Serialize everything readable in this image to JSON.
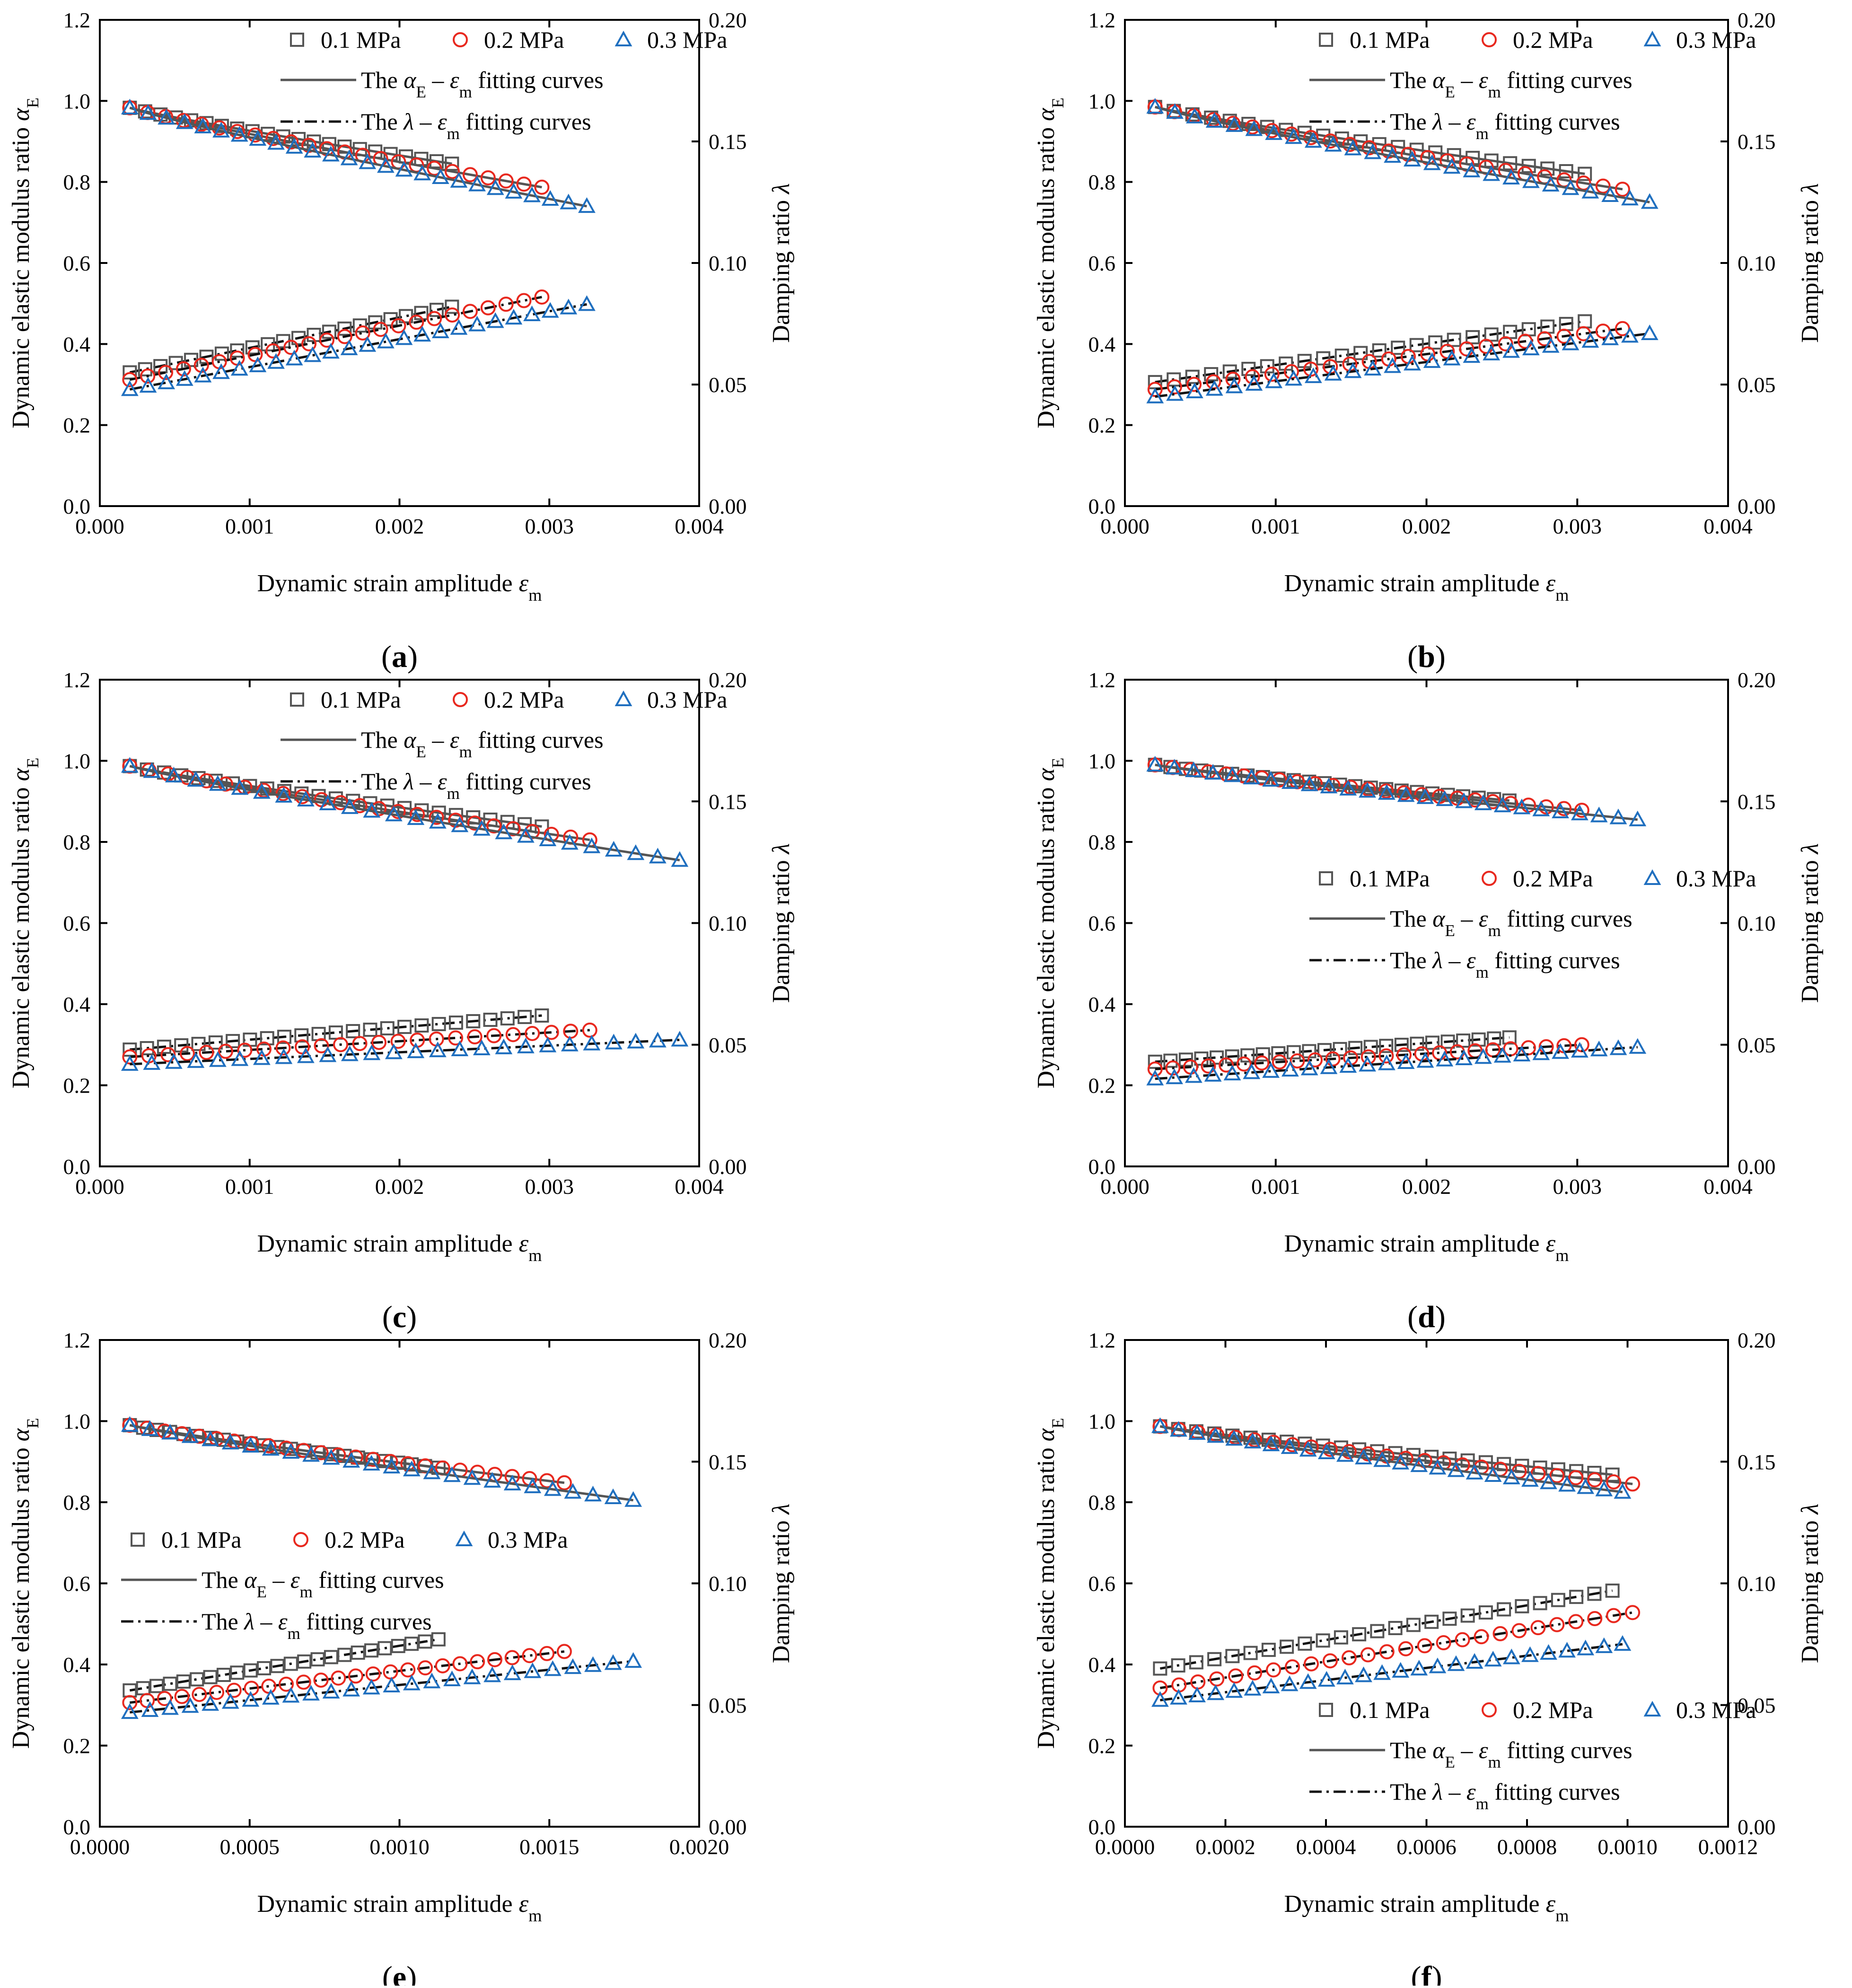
{
  "figure": {
    "legend": {
      "pressure_1": "0.1 MPa",
      "pressure_2": "0.2 MPa",
      "pressure_3": "0.3 MPa",
      "fit_E": "The αE – εm  fitting curves",
      "fit_L": "The λ – εm fitting curves"
    },
    "axis_labels": {
      "x": "Dynamic strain amplitude εm",
      "y_left": "Dynamic elastic modulus ratio αE",
      "y_right": "Damping ratio λ"
    },
    "colors": {
      "p1": "#555555",
      "p2": "#e8281e",
      "p3": "#1f6fbf",
      "fit_solid": "#555555",
      "fit_dash": "#111111"
    },
    "marker_icons": {
      "p1": "square-marker-icon",
      "p2": "circle-marker-icon",
      "p3": "triangle-marker-icon"
    }
  },
  "chart_data": [
    {
      "panel": "(a)",
      "type": "scatter",
      "xlabel": "Dynamic strain amplitude εm",
      "ylabel": "Dynamic elastic modulus ratio αE",
      "y2label": "Damping ratio λ",
      "xlim": [
        0,
        0.004
      ],
      "xticks": [
        "0.000",
        "0.001",
        "0.002",
        "0.003",
        "0.004"
      ],
      "ylim": [
        0,
        1.2
      ],
      "yticks": [
        "0.0",
        "0.2",
        "0.4",
        "0.6",
        "0.8",
        "1.0",
        "1.2"
      ],
      "y2lim": [
        0,
        0.2
      ],
      "y2ticks": [
        "0.00",
        "0.05",
        "0.10",
        "0.15",
        "0.20"
      ],
      "legend_position": "top-right",
      "series": [
        {
          "name": "0.1 MPa",
          "marker": "square",
          "x_range": [
            0.0002,
            0.00235
          ],
          "n": 22,
          "alphaE": [
            0.983,
            0.845
          ],
          "lambda": [
            0.055,
            0.082
          ]
        },
        {
          "name": "0.2 MPa",
          "marker": "circle",
          "x_range": [
            0.0002,
            0.00295
          ],
          "n": 24,
          "alphaE": [
            0.983,
            0.787
          ],
          "lambda": [
            0.052,
            0.086
          ]
        },
        {
          "name": "0.3 MPa",
          "marker": "triangle",
          "x_range": [
            0.0002,
            0.00325
          ],
          "n": 26,
          "alphaE": [
            0.983,
            0.74
          ],
          "lambda": [
            0.048,
            0.083
          ]
        }
      ]
    },
    {
      "panel": "(b)",
      "type": "scatter",
      "xlabel": "Dynamic strain amplitude εm",
      "ylabel": "Dynamic elastic modulus ratio αE",
      "y2label": "Damping ratio λ",
      "xlim": [
        0,
        0.004
      ],
      "xticks": [
        "0.000",
        "0.001",
        "0.002",
        "0.003",
        "0.004"
      ],
      "ylim": [
        0,
        1.2
      ],
      "yticks": [
        "0.0",
        "0.2",
        "0.4",
        "0.6",
        "0.8",
        "1.0",
        "1.2"
      ],
      "y2lim": [
        0,
        0.2
      ],
      "y2ticks": [
        "0.00",
        "0.05",
        "0.10",
        "0.15",
        "0.20"
      ],
      "legend_position": "top-right",
      "series": [
        {
          "name": "0.1 MPa",
          "marker": "square",
          "x_range": [
            0.0002,
            0.00305
          ],
          "n": 24,
          "alphaE": [
            0.985,
            0.82
          ],
          "lambda": [
            0.051,
            0.076
          ]
        },
        {
          "name": "0.2 MPa",
          "marker": "circle",
          "x_range": [
            0.0002,
            0.0033
          ],
          "n": 25,
          "alphaE": [
            0.985,
            0.782
          ],
          "lambda": [
            0.048,
            0.073
          ]
        },
        {
          "name": "0.3 MPa",
          "marker": "triangle",
          "x_range": [
            0.0002,
            0.00348
          ],
          "n": 26,
          "alphaE": [
            0.985,
            0.75
          ],
          "lambda": [
            0.045,
            0.071
          ]
        }
      ]
    },
    {
      "panel": "(c)",
      "type": "scatter",
      "xlabel": "Dynamic strain amplitude εm",
      "ylabel": "Dynamic elastic modulus ratio αE",
      "y2label": "Damping ratio λ",
      "xlim": [
        0,
        0.004
      ],
      "xticks": [
        "0.000",
        "0.001",
        "0.002",
        "0.003",
        "0.004"
      ],
      "ylim": [
        0,
        1.2
      ],
      "yticks": [
        "0.0",
        "0.2",
        "0.4",
        "0.6",
        "0.8",
        "1.0",
        "1.2"
      ],
      "y2lim": [
        0,
        0.2
      ],
      "y2ticks": [
        "0.00",
        "0.05",
        "0.10",
        "0.15",
        "0.20"
      ],
      "legend_position": "top-right",
      "series": [
        {
          "name": "0.1 MPa",
          "marker": "square",
          "x_range": [
            0.0002,
            0.00295
          ],
          "n": 25,
          "alphaE": [
            0.987,
            0.838
          ],
          "lambda": [
            0.048,
            0.062
          ]
        },
        {
          "name": "0.2 MPa",
          "marker": "circle",
          "x_range": [
            0.0002,
            0.00327
          ],
          "n": 25,
          "alphaE": [
            0.987,
            0.805
          ],
          "lambda": [
            0.045,
            0.056
          ]
        },
        {
          "name": "0.3 MPa",
          "marker": "triangle",
          "x_range": [
            0.0002,
            0.00387
          ],
          "n": 26,
          "alphaE": [
            0.987,
            0.755
          ],
          "lambda": [
            0.042,
            0.052
          ]
        }
      ]
    },
    {
      "panel": "(d)",
      "type": "scatter",
      "xlabel": "Dynamic strain amplitude εm",
      "ylabel": "Dynamic elastic modulus ratio αE",
      "y2label": "Damping ratio λ",
      "xlim": [
        0,
        0.004
      ],
      "xticks": [
        "0.000",
        "0.001",
        "0.002",
        "0.003",
        "0.004"
      ],
      "ylim": [
        0,
        1.2
      ],
      "yticks": [
        "0.0",
        "0.2",
        "0.4",
        "0.6",
        "0.8",
        "1.0",
        "1.2"
      ],
      "y2lim": [
        0,
        0.2
      ],
      "y2ticks": [
        "0.00",
        "0.05",
        "0.10",
        "0.15",
        "0.20"
      ],
      "legend_position": "center-right",
      "series": [
        {
          "name": "0.1 MPa",
          "marker": "square",
          "x_range": [
            0.0002,
            0.00255
          ],
          "n": 24,
          "alphaE": [
            0.99,
            0.902
          ],
          "lambda": [
            0.043,
            0.053
          ]
        },
        {
          "name": "0.2 MPa",
          "marker": "circle",
          "x_range": [
            0.0002,
            0.00303
          ],
          "n": 25,
          "alphaE": [
            0.99,
            0.878
          ],
          "lambda": [
            0.04,
            0.05
          ]
        },
        {
          "name": "0.3 MPa",
          "marker": "triangle",
          "x_range": [
            0.0002,
            0.0034
          ],
          "n": 26,
          "alphaE": [
            0.99,
            0.855
          ],
          "lambda": [
            0.036,
            0.049
          ]
        }
      ]
    },
    {
      "panel": "(e)",
      "type": "scatter",
      "xlabel": "Dynamic strain amplitude εm",
      "ylabel": "Dynamic elastic modulus ratio αE",
      "y2label": "Damping ratio λ",
      "xlim": [
        0,
        0.002
      ],
      "xticks": [
        "0.0000",
        "0.0005",
        "0.0010",
        "0.0015",
        "0.0020"
      ],
      "ylim": [
        0,
        1.2
      ],
      "yticks": [
        "0.0",
        "0.2",
        "0.4",
        "0.6",
        "0.8",
        "1.0",
        "1.2"
      ],
      "y2lim": [
        0,
        0.2
      ],
      "y2ticks": [
        "0.00",
        "0.05",
        "0.10",
        "0.15",
        "0.20"
      ],
      "legend_position": "center-left",
      "series": [
        {
          "name": "0.1 MPa",
          "marker": "square",
          "x_range": [
            0.0001,
            0.00113
          ],
          "n": 24,
          "alphaE": [
            0.99,
            0.885
          ],
          "lambda": [
            0.056,
            0.077
          ]
        },
        {
          "name": "0.2 MPa",
          "marker": "circle",
          "x_range": [
            0.0001,
            0.00155
          ],
          "n": 26,
          "alphaE": [
            0.99,
            0.848
          ],
          "lambda": [
            0.051,
            0.072
          ]
        },
        {
          "name": "0.3 MPa",
          "marker": "triangle",
          "x_range": [
            0.0001,
            0.00178
          ],
          "n": 26,
          "alphaE": [
            0.99,
            0.805
          ],
          "lambda": [
            0.047,
            0.068
          ]
        }
      ]
    },
    {
      "panel": "(f)",
      "type": "scatter",
      "xlabel": "Dynamic strain amplitude εm",
      "ylabel": "Dynamic elastic modulus ratio αE",
      "y2label": "Damping ratio λ",
      "xlim": [
        0,
        0.0012
      ],
      "xticks": [
        "0.0000",
        "0.0002",
        "0.0004",
        "0.0006",
        "0.0008",
        "0.0010",
        "0.0012"
      ],
      "ylim": [
        0,
        1.2
      ],
      "yticks": [
        "0.0",
        "0.2",
        "0.4",
        "0.6",
        "0.8",
        "1.0",
        "1.2"
      ],
      "y2lim": [
        0,
        0.2
      ],
      "y2ticks": [
        "0.00",
        "0.05",
        "0.10",
        "0.15",
        "0.20"
      ],
      "legend_position": "bottom-right",
      "series": [
        {
          "name": "0.1 MPa",
          "marker": "square",
          "x_range": [
            7e-05,
            0.00097
          ],
          "n": 26,
          "alphaE": [
            0.987,
            0.868
          ],
          "lambda": [
            0.065,
            0.097
          ]
        },
        {
          "name": "0.2 MPa",
          "marker": "circle",
          "x_range": [
            7e-05,
            0.00101
          ],
          "n": 26,
          "alphaE": [
            0.987,
            0.845
          ],
          "lambda": [
            0.057,
            0.088
          ]
        },
        {
          "name": "0.3 MPa",
          "marker": "triangle",
          "x_range": [
            7e-05,
            0.00099
          ],
          "n": 26,
          "alphaE": [
            0.987,
            0.825
          ],
          "lambda": [
            0.052,
            0.075
          ]
        }
      ]
    }
  ]
}
